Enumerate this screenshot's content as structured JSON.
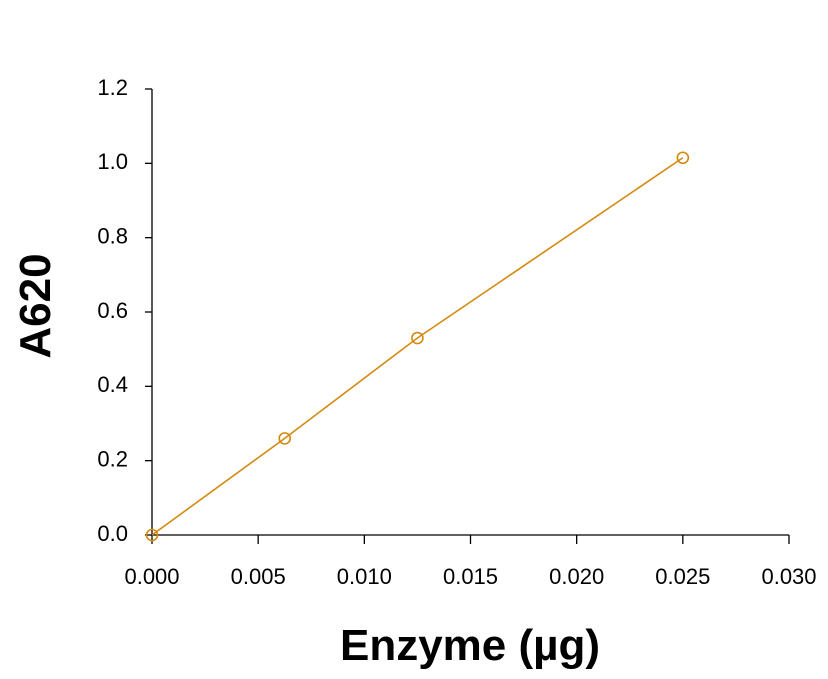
{
  "chart_data": {
    "type": "line",
    "x_label": "Enzyme (µg)",
    "y_label": "A620",
    "x": [
      0,
      0.00625,
      0.0125,
      0.025
    ],
    "series": [
      {
        "color": "#d4890f",
        "values": [
          0,
          0.26,
          0.53,
          1.015
        ]
      }
    ],
    "xlim": [
      0,
      0.03
    ],
    "xticks": [
      {
        "value": 0,
        "label": "0.000"
      },
      {
        "value": 0.005,
        "label": "0.005"
      },
      {
        "value": 0.01,
        "label": "0.010"
      },
      {
        "value": 0.015,
        "label": "0.015"
      },
      {
        "value": 0.02,
        "label": "0.020"
      },
      {
        "value": 0.025,
        "label": "0.025"
      },
      {
        "value": 0.03,
        "label": "0.030"
      }
    ],
    "ylim": [
      0,
      1.2
    ],
    "yticks": [
      {
        "value": 0,
        "label": "0.0"
      },
      {
        "value": 0.2,
        "label": "0.2"
      },
      {
        "value": 0.4,
        "label": "0.4"
      },
      {
        "value": 0.6,
        "label": "0.6"
      },
      {
        "value": 0.8,
        "label": "0.8"
      },
      {
        "value": 1,
        "label": "1.0"
      },
      {
        "value": 1.2,
        "label": "1.2"
      }
    ]
  }
}
